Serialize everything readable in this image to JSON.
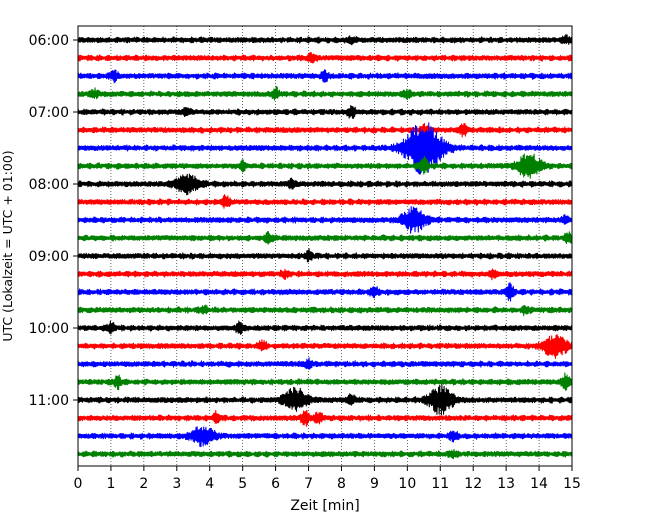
{
  "chart_data": {
    "type": "line",
    "title": "",
    "xlabel": "Zeit  [min]",
    "ylabel": "UTC (Lokalzeit = UTC + 01:00)",
    "xlim": [
      0,
      15
    ],
    "x_ticks": [
      "0",
      "1",
      "2",
      "3",
      "4",
      "5",
      "6",
      "7",
      "8",
      "9",
      "10",
      "11",
      "12",
      "13",
      "14",
      "15"
    ],
    "y_ticks": [
      "06:00",
      "07:00",
      "08:00",
      "09:00",
      "10:00",
      "11:00"
    ],
    "grid": "vertical dotted lines at every minute",
    "trace_interval_minutes": 15,
    "trace_colors": [
      "#000000",
      "#ff0000",
      "#0000ff",
      "#008000"
    ],
    "traces": [
      {
        "start": "06:00",
        "color": "#000000",
        "events": [
          {
            "t": 8.3,
            "amp": 0.35
          },
          {
            "t": 14.8,
            "amp": 0.4
          }
        ]
      },
      {
        "start": "06:15",
        "color": "#ff0000",
        "events": [
          {
            "t": 7.1,
            "amp": 0.5
          }
        ]
      },
      {
        "start": "06:30",
        "color": "#0000ff",
        "events": [
          {
            "t": 1.1,
            "amp": 0.5
          },
          {
            "t": 7.5,
            "amp": 0.5
          }
        ]
      },
      {
        "start": "06:45",
        "color": "#008000",
        "events": [
          {
            "t": 0.5,
            "amp": 0.4
          },
          {
            "t": 6.0,
            "amp": 0.6
          },
          {
            "t": 10.0,
            "amp": 0.4
          }
        ]
      },
      {
        "start": "07:00",
        "color": "#000000",
        "events": [
          {
            "t": 3.3,
            "amp": 0.4
          },
          {
            "t": 8.3,
            "amp": 0.6
          }
        ]
      },
      {
        "start": "07:15",
        "color": "#ff0000",
        "events": [
          {
            "t": 10.5,
            "amp": 0.6
          },
          {
            "t": 11.7,
            "amp": 0.6
          }
        ]
      },
      {
        "start": "07:30",
        "color": "#0000ff",
        "events": [
          {
            "t": 10.5,
            "amp": 2.8
          }
        ]
      },
      {
        "start": "07:45",
        "color": "#008000",
        "events": [
          {
            "t": 5.0,
            "amp": 0.4
          },
          {
            "t": 10.5,
            "amp": 0.8
          },
          {
            "t": 13.7,
            "amp": 1.3
          }
        ]
      },
      {
        "start": "08:00",
        "color": "#000000",
        "events": [
          {
            "t": 3.3,
            "amp": 1.0
          },
          {
            "t": 6.5,
            "amp": 0.4
          }
        ]
      },
      {
        "start": "08:15",
        "color": "#ff0000",
        "events": [
          {
            "t": 4.5,
            "amp": 0.6
          }
        ]
      },
      {
        "start": "08:30",
        "color": "#0000ff",
        "events": [
          {
            "t": 10.2,
            "amp": 1.3
          },
          {
            "t": 14.8,
            "amp": 0.4
          }
        ]
      },
      {
        "start": "08:45",
        "color": "#008000",
        "events": [
          {
            "t": 5.8,
            "amp": 0.5
          },
          {
            "t": 14.9,
            "amp": 0.5
          }
        ]
      },
      {
        "start": "09:00",
        "color": "#000000",
        "events": [
          {
            "t": 7.0,
            "amp": 0.5
          }
        ]
      },
      {
        "start": "09:15",
        "color": "#ff0000",
        "events": [
          {
            "t": 6.3,
            "amp": 0.4
          },
          {
            "t": 12.6,
            "amp": 0.4
          }
        ]
      },
      {
        "start": "09:30",
        "color": "#0000ff",
        "events": [
          {
            "t": 9.0,
            "amp": 0.5
          },
          {
            "t": 13.1,
            "amp": 0.9
          }
        ]
      },
      {
        "start": "09:45",
        "color": "#008000",
        "events": [
          {
            "t": 3.8,
            "amp": 0.4
          },
          {
            "t": 13.6,
            "amp": 0.4
          }
        ]
      },
      {
        "start": "10:00",
        "color": "#000000",
        "events": [
          {
            "t": 1.0,
            "amp": 0.5
          },
          {
            "t": 4.9,
            "amp": 0.5
          }
        ]
      },
      {
        "start": "10:15",
        "color": "#ff0000",
        "events": [
          {
            "t": 5.6,
            "amp": 0.5
          },
          {
            "t": 14.5,
            "amp": 1.2
          }
        ]
      },
      {
        "start": "10:30",
        "color": "#0000ff",
        "events": [
          {
            "t": 7.0,
            "amp": 0.4
          }
        ]
      },
      {
        "start": "10:45",
        "color": "#008000",
        "events": [
          {
            "t": 1.2,
            "amp": 0.6
          },
          {
            "t": 14.8,
            "amp": 0.8
          }
        ]
      },
      {
        "start": "11:00",
        "color": "#000000",
        "events": [
          {
            "t": 6.6,
            "amp": 1.2
          },
          {
            "t": 8.3,
            "amp": 0.5
          },
          {
            "t": 11.0,
            "amp": 1.5
          }
        ]
      },
      {
        "start": "11:15",
        "color": "#ff0000",
        "events": [
          {
            "t": 4.2,
            "amp": 0.5
          },
          {
            "t": 6.9,
            "amp": 0.9
          },
          {
            "t": 7.3,
            "amp": 0.5
          }
        ]
      },
      {
        "start": "11:30",
        "color": "#0000ff",
        "events": [
          {
            "t": 3.8,
            "amp": 1.0
          },
          {
            "t": 11.4,
            "amp": 0.5
          }
        ]
      },
      {
        "start": "11:45",
        "color": "#008000",
        "events": [
          {
            "t": 11.4,
            "amp": 0.3
          }
        ]
      }
    ]
  }
}
